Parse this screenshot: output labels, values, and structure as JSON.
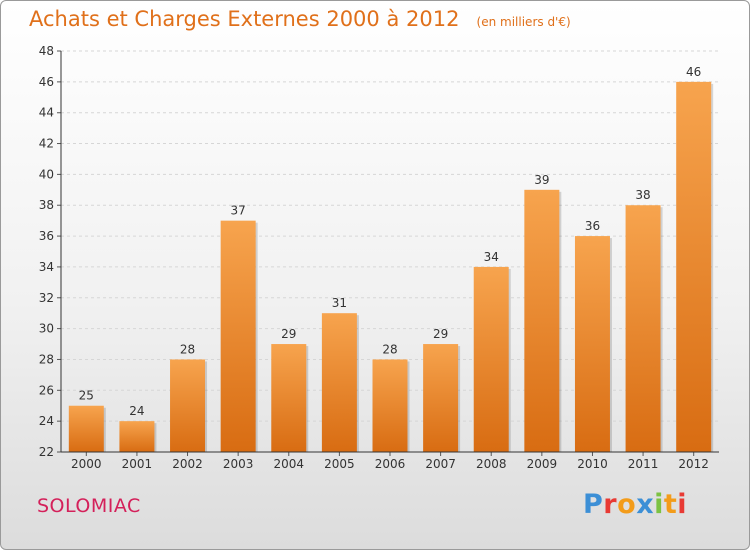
{
  "header": {
    "title": "Achats et Charges Externes 2000 à 2012",
    "unit": "(en milliers d'€)"
  },
  "footer": {
    "commune": "SOLOMIAC",
    "brand": "Proxiti"
  },
  "colors": {
    "accent": "#e0701a",
    "commune": "#d4205a",
    "bar_top": "#f7a44e",
    "bar_bottom": "#d86c12",
    "brand_letters": [
      "#3c8fd6",
      "#e83a34",
      "#f39c1a",
      "#3c8fd6",
      "#7cc242",
      "#f39c1a",
      "#e83a34"
    ]
  },
  "chart_data": {
    "type": "bar",
    "categories": [
      "2000",
      "2001",
      "2002",
      "2003",
      "2004",
      "2005",
      "2006",
      "2007",
      "2008",
      "2009",
      "2010",
      "2011",
      "2012"
    ],
    "values": [
      25,
      24,
      28,
      37,
      29,
      31,
      28,
      29,
      34,
      39,
      36,
      38,
      46
    ],
    "title": "Achats et Charges Externes 2000 à 2012",
    "subtitle": "(en milliers d'€)",
    "xlabel": "",
    "ylabel": "",
    "ylim": [
      22,
      48
    ],
    "yticks": [
      22,
      24,
      26,
      28,
      30,
      32,
      34,
      36,
      38,
      40,
      42,
      44,
      46,
      48
    ],
    "grid": true,
    "data_labels": true
  }
}
